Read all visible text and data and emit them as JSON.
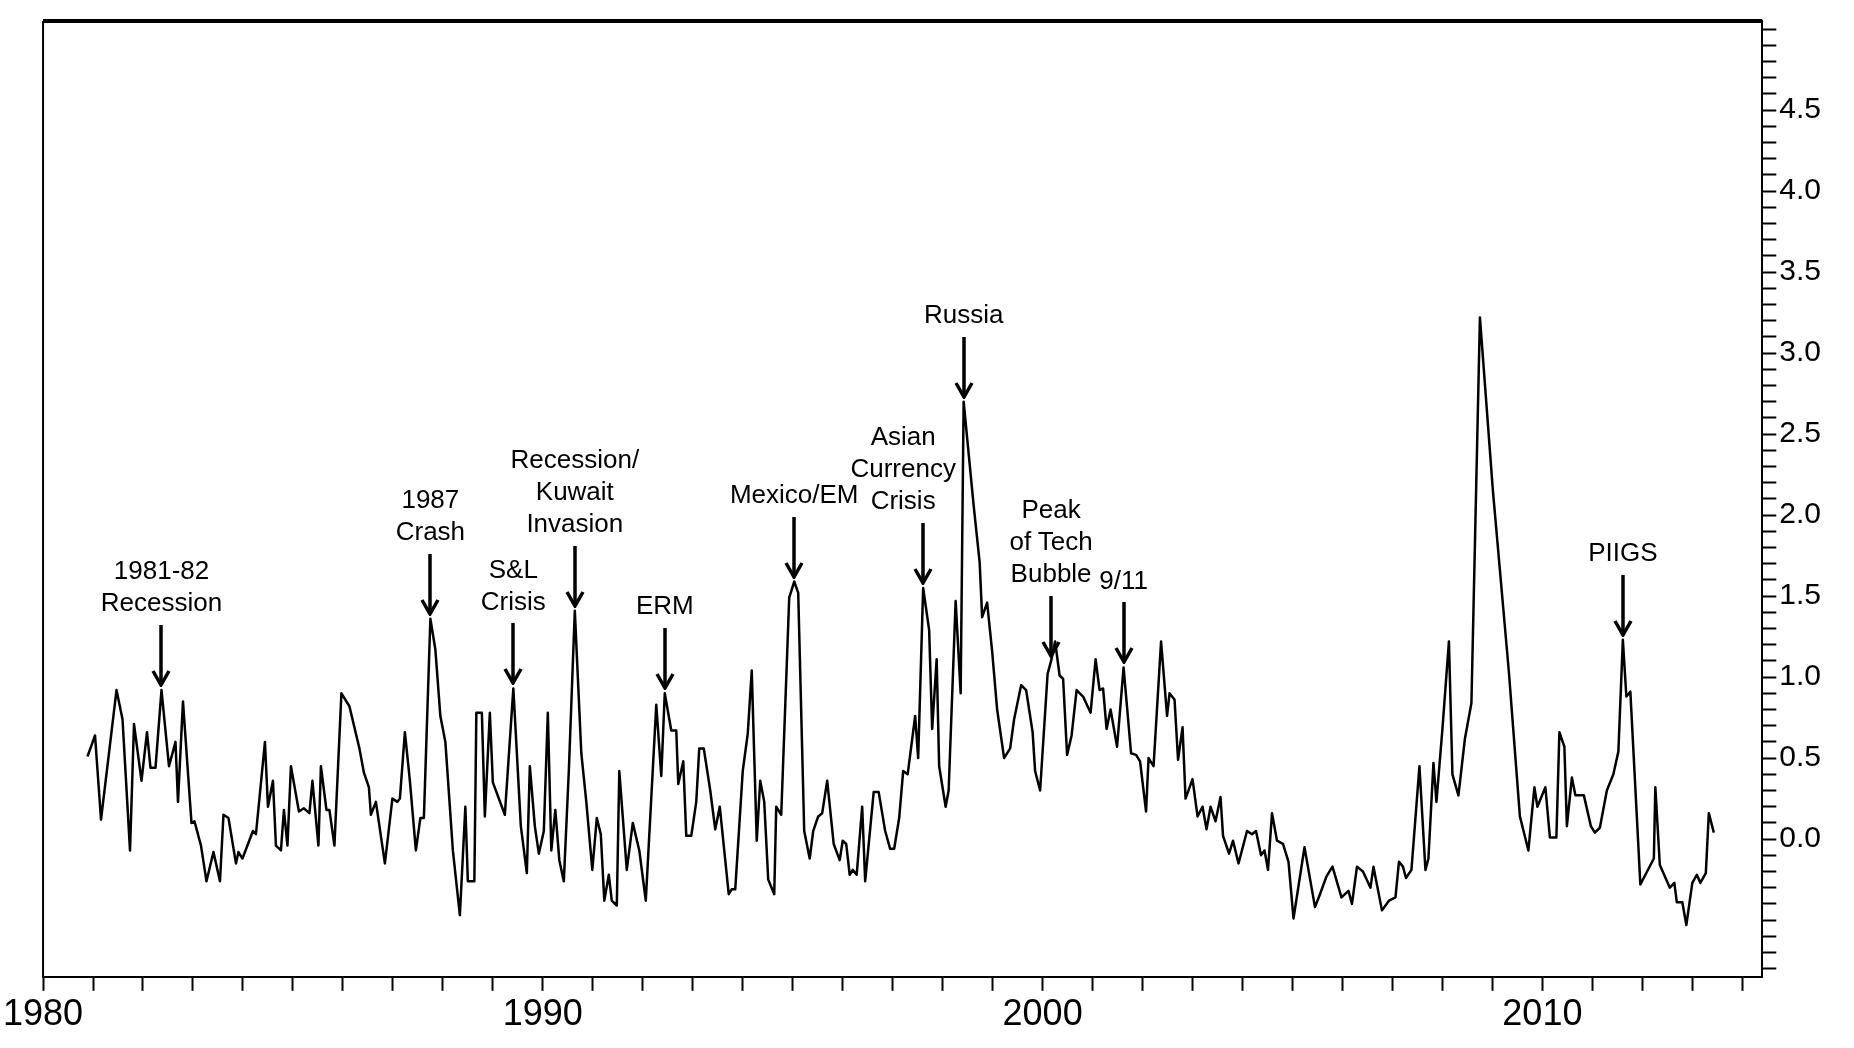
{
  "chart_data": {
    "type": "line",
    "color": "#000000",
    "line_style": "solid",
    "xlim": [
      1980,
      2014.4
    ],
    "xticks": [
      1980,
      {
        "value": 1981,
        "label": null
      },
      {
        "value": 1982,
        "label": null
      },
      {
        "value": 1983,
        "label": null
      },
      {
        "value": 1984,
        "label": null
      },
      {
        "value": 1985,
        "label": null
      },
      {
        "value": 1986,
        "label": null
      },
      {
        "value": 1987,
        "label": null
      },
      {
        "value": 1988,
        "label": null
      },
      {
        "value": 1989,
        "label": null
      },
      1990,
      {
        "value": 1991,
        "label": null
      },
      {
        "value": 1992,
        "label": null
      },
      {
        "value": 1993,
        "label": null
      },
      {
        "value": 1994,
        "label": null
      },
      {
        "value": 1995,
        "label": null
      },
      {
        "value": 1996,
        "label": null
      },
      {
        "value": 1997,
        "label": null
      },
      {
        "value": 1998,
        "label": null
      },
      {
        "value": 1999,
        "label": null
      },
      2000,
      {
        "value": 2001,
        "label": null
      },
      {
        "value": 2002,
        "label": null
      },
      {
        "value": 2003,
        "label": null
      },
      {
        "value": 2004,
        "label": null
      },
      {
        "value": 2005,
        "label": null
      },
      {
        "value": 2006,
        "label": null
      },
      {
        "value": 2007,
        "label": null
      },
      {
        "value": 2008,
        "label": null
      },
      {
        "value": 2009,
        "label": null
      },
      2010,
      {
        "value": 2011,
        "label": null
      },
      {
        "value": 2012,
        "label": null
      },
      {
        "value": 2013,
        "label": null
      },
      {
        "value": 2014,
        "label": null
      }
    ],
    "ylim": [
      -0.85,
      5.05
    ],
    "yticks": [
      {
        "value": -0.8,
        "label": null
      },
      {
        "value": -0.7,
        "label": null
      },
      {
        "value": -0.6,
        "label": null
      },
      {
        "value": -0.5,
        "label": null
      },
      {
        "value": -0.4,
        "label": null
      },
      {
        "value": -0.3,
        "label": null
      },
      {
        "value": -0.2,
        "label": null
      },
      {
        "value": -0.1,
        "label": null
      },
      {
        "value": 0,
        "label": "0.0"
      },
      {
        "value": 0.1,
        "label": null
      },
      {
        "value": 0.2,
        "label": null
      },
      {
        "value": 0.3,
        "label": null
      },
      {
        "value": 0.4,
        "label": null
      },
      0.5,
      {
        "value": 0.6,
        "label": null
      },
      {
        "value": 0.7,
        "label": null
      },
      {
        "value": 0.8,
        "label": null
      },
      {
        "value": 0.9,
        "label": null
      },
      {
        "value": 1,
        "label": "1.0"
      },
      {
        "value": 1.1,
        "label": null
      },
      {
        "value": 1.2,
        "label": null
      },
      {
        "value": 1.3,
        "label": null
      },
      {
        "value": 1.4,
        "label": null
      },
      1.5,
      {
        "value": 1.6,
        "label": null
      },
      {
        "value": 1.7,
        "label": null
      },
      {
        "value": 1.8,
        "label": null
      },
      {
        "value": 1.9,
        "label": null
      },
      {
        "value": 2,
        "label": "2.0"
      },
      {
        "value": 2.1,
        "label": null
      },
      {
        "value": 2.2,
        "label": null
      },
      {
        "value": 2.3,
        "label": null
      },
      {
        "value": 2.4,
        "label": null
      },
      2.5,
      {
        "value": 2.6,
        "label": null
      },
      {
        "value": 2.7,
        "label": null
      },
      {
        "value": 2.8,
        "label": null
      },
      {
        "value": 2.9,
        "label": null
      },
      {
        "value": 3,
        "label": "3.0"
      },
      {
        "value": 3.1,
        "label": null
      },
      {
        "value": 3.2,
        "label": null
      },
      {
        "value": 3.3,
        "label": null
      },
      {
        "value": 3.4,
        "label": null
      },
      3.5,
      {
        "value": 3.6,
        "label": null
      },
      {
        "value": 3.7,
        "label": null
      },
      {
        "value": 3.8,
        "label": null
      },
      {
        "value": 3.9,
        "label": null
      },
      {
        "value": 4,
        "label": "4.0"
      },
      {
        "value": 4.1,
        "label": null
      },
      {
        "value": 4.2,
        "label": null
      },
      {
        "value": 4.3,
        "label": null
      },
      {
        "value": 4.4,
        "label": null
      },
      4.5,
      {
        "value": 4.6,
        "label": null
      },
      {
        "value": 4.7,
        "label": null
      },
      {
        "value": 4.8,
        "label": null
      },
      {
        "value": 4.9,
        "label": null
      },
      {
        "value": 5,
        "label": null
      }
    ],
    "x": [
      1980.89,
      1981.04,
      1981.16,
      1981.47,
      1981.59,
      1981.74,
      1981.82,
      1981.97,
      1982.08,
      1982.15,
      1982.25,
      1982.37,
      1982.52,
      1982.65,
      1982.7,
      1982.8,
      1982.97,
      1983.03,
      1983.16,
      1983.27,
      1983.41,
      1983.54,
      1983.61,
      1983.71,
      1983.86,
      1983.91,
      1983.99,
      1984.2,
      1984.26,
      1984.44,
      1984.5,
      1984.6,
      1984.66,
      1984.76,
      1984.82,
      1984.89,
      1984.96,
      1985.12,
      1985.22,
      1985.33,
      1985.39,
      1985.51,
      1985.56,
      1985.67,
      1985.73,
      1985.83,
      1985.97,
      1986.13,
      1986.33,
      1986.42,
      1986.52,
      1986.56,
      1986.66,
      1986.84,
      1986.99,
      1987.09,
      1987.14,
      1987.24,
      1987.34,
      1987.46,
      1987.55,
      1987.62,
      1987.75,
      1987.85,
      1987.95,
      1988.05,
      1988.2,
      1988.34,
      1988.45,
      1988.5,
      1988.63,
      1988.67,
      1988.78,
      1988.84,
      1988.94,
      1989.0,
      1989.24,
      1989.41,
      1989.56,
      1989.68,
      1989.74,
      1989.84,
      1989.92,
      1990.02,
      1990.1,
      1990.17,
      1990.25,
      1990.33,
      1990.42,
      1990.52,
      1990.64,
      1990.77,
      1990.87,
      1990.99,
      1991.08,
      1991.16,
      1991.23,
      1991.32,
      1991.38,
      1991.48,
      1991.53,
      1991.68,
      1991.8,
      1991.93,
      1992.06,
      1992.27,
      1992.37,
      1992.44,
      1992.57,
      1992.67,
      1992.71,
      1992.81,
      1992.87,
      1992.97,
      1993.07,
      1993.13,
      1993.22,
      1993.35,
      1993.45,
      1993.54,
      1993.72,
      1993.78,
      1993.85,
      1994.0,
      1994.1,
      1994.18,
      1994.28,
      1994.35,
      1994.43,
      1994.51,
      1994.63,
      1994.67,
      1994.77,
      1994.93,
      1995.03,
      1995.11,
      1995.23,
      1995.34,
      1995.41,
      1995.51,
      1995.59,
      1995.69,
      1995.82,
      1995.94,
      1996.0,
      1996.07,
      1996.14,
      1996.2,
      1996.28,
      1996.39,
      1996.45,
      1996.62,
      1996.72,
      1996.85,
      1996.95,
      1997.03,
      1997.13,
      1997.21,
      1997.3,
      1997.45,
      1997.51,
      1997.61,
      1997.73,
      1997.79,
      1997.88,
      1997.93,
      1998.06,
      1998.12,
      1998.26,
      1998.36,
      1998.42,
      1998.62,
      1998.74,
      1998.79,
      1998.89,
      1998.99,
      1999.09,
      1999.23,
      1999.35,
      1999.43,
      1999.57,
      1999.67,
      1999.8,
      1999.85,
      1999.95,
      2000.1,
      2000.17,
      2000.25,
      2000.34,
      2000.41,
      2000.49,
      2000.58,
      2000.68,
      2000.81,
      2000.96,
      2001.06,
      2001.14,
      2001.21,
      2001.28,
      2001.36,
      2001.49,
      2001.62,
      2001.77,
      2001.87,
      2001.95,
      2002.07,
      2002.12,
      2002.22,
      2002.37,
      2002.49,
      2002.54,
      2002.64,
      2002.71,
      2002.8,
      2002.86,
      2003.0,
      2003.1,
      2003.2,
      2003.28,
      2003.36,
      2003.46,
      2003.56,
      2003.61,
      2003.73,
      2003.81,
      2003.92,
      2004.09,
      2004.19,
      2004.27,
      2004.37,
      2004.44,
      2004.51,
      2004.59,
      2004.69,
      2004.81,
      2004.92,
      2005.02,
      2005.24,
      2005.45,
      2005.55,
      2005.68,
      2005.8,
      2005.98,
      2006.12,
      2006.19,
      2006.29,
      2006.41,
      2006.56,
      2006.62,
      2006.79,
      2006.93,
      2007.06,
      2007.13,
      2007.21,
      2007.27,
      2007.38,
      2007.54,
      2007.66,
      2007.72,
      2007.82,
      2007.88,
      2008.0,
      2008.13,
      2008.2,
      2008.32,
      2008.45,
      2008.58,
      2008.75,
      2009.01,
      2009.33,
      2009.55,
      2009.72,
      2009.84,
      2009.9,
      2010.06,
      2010.15,
      2010.28,
      2010.34,
      2010.44,
      2010.49,
      2010.59,
      2010.66,
      2010.83,
      2010.97,
      2011.05,
      2011.15,
      2011.29,
      2011.42,
      2011.52,
      2011.61,
      2011.68,
      2011.76,
      2011.96,
      2012.23,
      2012.26,
      2012.35,
      2012.55,
      2012.64,
      2012.69,
      2012.8,
      2012.88,
      2013.0,
      2013.09,
      2013.16,
      2013.27,
      2013.33,
      2013.43
    ],
    "values": [
      0.51,
      0.64,
      0.12,
      0.92,
      0.74,
      -0.07,
      0.71,
      0.36,
      0.66,
      0.44,
      0.44,
      0.92,
      0.45,
      0.6,
      0.23,
      0.85,
      0.1,
      0.11,
      -0.04,
      -0.26,
      -0.08,
      -0.26,
      0.15,
      0.13,
      -0.15,
      -0.08,
      -0.12,
      0.05,
      0.03,
      0.6,
      0.2,
      0.36,
      -0.04,
      -0.07,
      0.18,
      -0.04,
      0.45,
      0.17,
      0.19,
      0.16,
      0.36,
      -0.04,
      0.45,
      0.18,
      0.18,
      -0.04,
      0.9,
      0.82,
      0.56,
      0.41,
      0.32,
      0.15,
      0.23,
      -0.15,
      0.25,
      0.23,
      0.25,
      0.66,
      0.36,
      -0.07,
      0.13,
      0.13,
      1.36,
      1.17,
      0.76,
      0.6,
      -0.07,
      -0.47,
      0.2,
      -0.26,
      -0.26,
      0.78,
      0.78,
      0.14,
      0.78,
      0.35,
      0.15,
      0.93,
      0.08,
      -0.21,
      0.45,
      0.08,
      -0.09,
      0.05,
      0.78,
      -0.07,
      0.18,
      -0.13,
      -0.26,
      0.42,
      1.41,
      0.53,
      0.23,
      -0.19,
      0.13,
      0.03,
      -0.38,
      -0.22,
      -0.38,
      -0.41,
      0.42,
      -0.19,
      0.1,
      -0.07,
      -0.38,
      0.83,
      0.39,
      0.9,
      0.67,
      0.67,
      0.34,
      0.48,
      0.02,
      0.02,
      0.23,
      0.56,
      0.56,
      0.3,
      0.06,
      0.2,
      -0.34,
      -0.31,
      -0.31,
      0.42,
      0.65,
      1.04,
      -0.01,
      0.36,
      0.23,
      -0.25,
      -0.34,
      0.2,
      0.15,
      1.49,
      1.59,
      1.52,
      0.05,
      -0.12,
      0.05,
      0.14,
      0.16,
      0.36,
      -0.03,
      -0.13,
      -0.01,
      -0.03,
      -0.22,
      -0.19,
      -0.22,
      0.2,
      -0.26,
      0.29,
      0.29,
      0.05,
      -0.06,
      -0.06,
      0.13,
      0.42,
      0.4,
      0.76,
      0.5,
      1.55,
      1.29,
      0.68,
      1.11,
      0.45,
      0.2,
      0.3,
      1.47,
      0.9,
      2.7,
      2.06,
      1.71,
      1.37,
      1.46,
      1.16,
      0.8,
      0.5,
      0.56,
      0.74,
      0.95,
      0.92,
      0.66,
      0.42,
      0.3,
      1.02,
      1.1,
      1.22,
      1.01,
      0.99,
      0.52,
      0.64,
      0.92,
      0.88,
      0.78,
      1.11,
      0.92,
      0.93,
      0.68,
      0.8,
      0.57,
      1.06,
      0.53,
      0.52,
      0.48,
      0.17,
      0.5,
      0.45,
      1.22,
      0.76,
      0.9,
      0.86,
      0.49,
      0.69,
      0.25,
      0.37,
      0.14,
      0.2,
      0.06,
      0.2,
      0.11,
      0.26,
      0.02,
      -0.09,
      -0.01,
      -0.15,
      0.05,
      0.03,
      0.05,
      -0.1,
      -0.07,
      -0.19,
      0.16,
      -0.01,
      -0.03,
      -0.14,
      -0.49,
      -0.05,
      -0.42,
      -0.34,
      -0.23,
      -0.17,
      -0.36,
      -0.32,
      -0.4,
      -0.17,
      -0.2,
      -0.3,
      -0.17,
      -0.44,
      -0.38,
      -0.36,
      -0.14,
      -0.17,
      -0.24,
      -0.19,
      0.45,
      -0.19,
      -0.12,
      0.47,
      0.23,
      0.68,
      1.22,
      0.4,
      0.27,
      0.62,
      0.84,
      3.22,
      2.15,
      1.03,
      0.14,
      -0.07,
      0.32,
      0.2,
      0.32,
      0.01,
      0.01,
      0.66,
      0.57,
      0.08,
      0.38,
      0.27,
      0.27,
      0.08,
      0.04,
      0.07,
      0.3,
      0.4,
      0.54,
      1.23,
      0.88,
      0.91,
      -0.28,
      -0.12,
      0.32,
      -0.16,
      -0.3,
      -0.27,
      -0.39,
      -0.39,
      -0.53,
      -0.27,
      -0.22,
      -0.27,
      -0.21,
      0.16,
      0.04
    ],
    "annotations": [
      {
        "text": "1981-82\nRecession",
        "x": 1982.37,
        "y": 0.92
      },
      {
        "text": "1987\nCrash",
        "x": 1987.75,
        "y": 1.36
      },
      {
        "text": "S&L\nCrisis",
        "x": 1989.41,
        "y": 0.93
      },
      {
        "text": "Recession/\nKuwait\nInvasion",
        "x": 1990.64,
        "y": 1.41
      },
      {
        "text": "ERM",
        "x": 1992.44,
        "y": 0.9
      },
      {
        "text": "Mexico/EM",
        "x": 1995.03,
        "y": 1.59
      },
      {
        "text": "Asian\nCurrency\nCrisis",
        "x": 1997.61,
        "y": 1.55
      },
      {
        "text": "Russia",
        "x": 1998.42,
        "y": 2.7
      },
      {
        "text": "Peak\nof Tech\nBubble",
        "x": 2000.17,
        "y": 1.1
      },
      {
        "text": "9/11",
        "x": 2001.62,
        "y": 1.06
      },
      {
        "text": "PIIGS",
        "x": 2011.61,
        "y": 1.23
      }
    ]
  }
}
